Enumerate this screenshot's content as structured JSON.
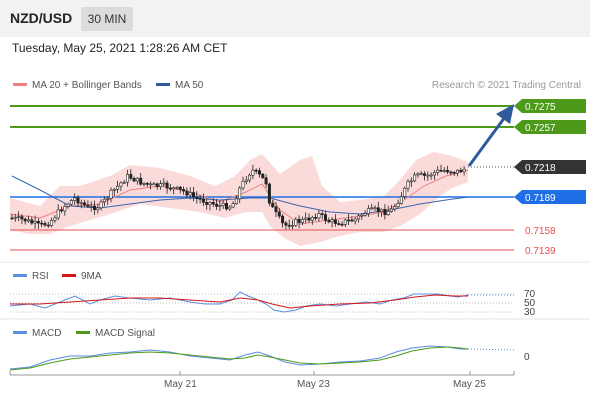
{
  "header": {
    "pair": "NZD/USD",
    "timeframe": "30 MIN"
  },
  "datetime": "Tuesday, May 25, 2021 1:28:26 AM CET",
  "legend": {
    "ma20": "MA 20 + Bollinger Bands",
    "ma50": "MA 50",
    "credit": "Research © 2021 Trading Central"
  },
  "colors": {
    "ma20": "#f08080",
    "ma50": "#2f5b9a",
    "target": "#4d9a1a",
    "support": "#1e6fe6",
    "resistance_red": "#e05050",
    "price_box": "#333333"
  },
  "levels": [
    {
      "label": "0.7275",
      "kind": "target"
    },
    {
      "label": "0.7257",
      "kind": "target"
    },
    {
      "label": "0.7218",
      "kind": "price"
    },
    {
      "label": "0.7189",
      "kind": "pivot"
    },
    {
      "label": "0.7158",
      "kind": "support"
    },
    {
      "label": "0.7139",
      "kind": "support"
    }
  ],
  "rsi": {
    "label": "RSI",
    "signal_label": "9MA",
    "levels": [
      "70",
      "50",
      "30"
    ]
  },
  "macd": {
    "label": "MACD",
    "signal_label": "MACD Signal",
    "zero": "0"
  },
  "xaxis": [
    "May 21",
    "May 23",
    "May 25"
  ],
  "chart_data": {
    "type": "candlestick",
    "symbol": "NZD/USD",
    "interval": "30 MIN",
    "x_ticks": [
      "May 21",
      "May 23",
      "May 25"
    ],
    "horizontal_levels": [
      0.7275,
      0.7257,
      0.7218,
      0.7189,
      0.7158,
      0.7139
    ],
    "last_price": 0.7218,
    "ylim": [
      0.7125,
      0.7285
    ],
    "indicators": [
      "MA 20 + Bollinger Bands",
      "MA 50",
      "RSI",
      "9MA",
      "MACD",
      "MACD Signal"
    ],
    "rsi_levels": [
      70,
      50,
      30
    ]
  }
}
